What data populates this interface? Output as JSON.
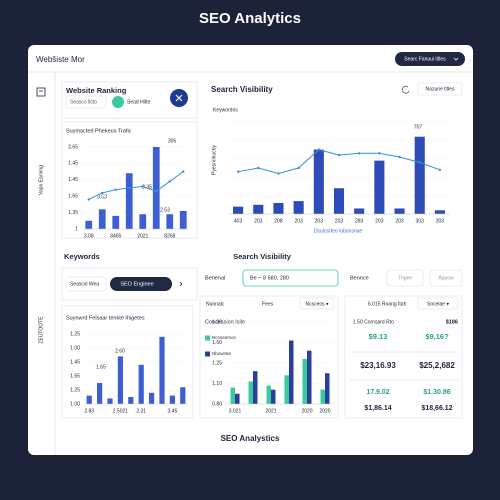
{
  "header": {
    "title": "SEO Analytics"
  },
  "app": {
    "site": "Webšiste Mor",
    "search_button": "Searc Fanuui titles",
    "sidebar": [
      "Vapo Earning",
      "ZEUTOOTE"
    ]
  },
  "ranking": {
    "title": "Website Ranking",
    "input": "Seasco llsto",
    "button": "Sead Hitte"
  },
  "visibility": {
    "title": "Search Visibility",
    "button": "Nazurie titles",
    "subtitle": "Keywordris",
    "axis_label": "Pyesnnhucby",
    "footnote": "Dsuiosrteo lobonsnae"
  },
  "keywords": {
    "title": "Keywords",
    "center_title": "Search Visibility",
    "input": "Seascvl Wea",
    "engine": "SEO Enginee",
    "label": "Benenal",
    "field": "Be ~ 8 680, 280",
    "select": "Bennce",
    "button_a": "Thgee",
    "button_b": "Appow"
  },
  "bottom_mid": {
    "tab_a": "Nunnalc",
    "tab_b": "Fees",
    "select": "Ncsceos ▾"
  },
  "table": {
    "title": "6.015 Rnang Itah",
    "select": "Sncelae ▾",
    "rows": [
      [
        "1.50 Cornsard Rto",
        "$186"
      ],
      [
        "$9.13",
        "$9,16?"
      ],
      [
        "$23,16.93",
        "$25,2,682"
      ],
      [
        "17.9.02",
        "$1.30.86"
      ],
      [
        "$1,86.14",
        "$18,66.12"
      ]
    ]
  },
  "footer": "SEO Analystics",
  "chart_data": [
    {
      "type": "bar_line",
      "title": "Suymacted Phekeus Trafic",
      "categories": [
        "3.08",
        null,
        "8465",
        null,
        "2021",
        null,
        "8268",
        null
      ],
      "ylim": [
        0,
        5
      ],
      "yticks": [
        {
          "value": 5,
          "label": "2.65"
        },
        {
          "value": 4,
          "label": "1.45"
        },
        {
          "value": 3,
          "label": "1.45"
        },
        {
          "value": 2,
          "label": "1.65"
        },
        {
          "value": 1,
          "label": "1.35"
        },
        {
          "value": 0,
          "label": "1"
        }
      ],
      "series": [
        {
          "kind": "bar",
          "color": "#3d5fd1",
          "values": [
            0.5,
            1.2,
            0.8,
            3.4,
            0.9,
            5,
            0.9,
            1.1
          ]
        },
        {
          "kind": "line",
          "color": "#3a8fd6",
          "values": [
            1.8,
            2.2,
            2.4,
            2.5,
            2.6,
            2.3,
            2.9,
            3.5
          ]
        }
      ],
      "annotations": [
        "305",
        "3.53",
        "3.35",
        "2.53"
      ]
    },
    {
      "type": "bar_line",
      "title": "",
      "categories": [
        "403",
        "203",
        "208",
        "203",
        "203",
        "203",
        "283",
        "203",
        "203",
        "303",
        "203"
      ],
      "ylim": [
        0,
        5
      ],
      "yticks": [
        0,
        1,
        2,
        3,
        4,
        5
      ],
      "series": [
        {
          "kind": "bar",
          "color": "#2f4bb8",
          "values": [
            0.4,
            0.5,
            0.6,
            0.7,
            3.5,
            1.4,
            0.3,
            2.9,
            0.3,
            4.2,
            0.2
          ]
        },
        {
          "kind": "line",
          "color": "#3a8fd6",
          "values": [
            2.3,
            2.5,
            2.2,
            2.5,
            3.5,
            3.2,
            3.3,
            3.3,
            3.1,
            2.8,
            2.4
          ]
        }
      ],
      "annotations": [
        "707"
      ]
    },
    {
      "type": "bar_line",
      "title": "Suynwrd Felsaar tenkte Ihigetes",
      "categories": [
        "2.83",
        null,
        null,
        "2.5021",
        null,
        "2.31",
        null,
        null,
        "3.45",
        null
      ],
      "ylim": [
        0,
        5
      ],
      "yticks": [
        {
          "value": 5,
          "label": "1.25"
        },
        {
          "value": 4,
          "label": "1.00"
        },
        {
          "value": 3,
          "label": "1.45"
        },
        {
          "value": 2,
          "label": "1.65"
        },
        {
          "value": 1,
          "label": "1.25"
        },
        {
          "value": 0,
          "label": "1.00"
        }
      ],
      "series": [
        {
          "kind": "bar",
          "color": "#3d5fd1",
          "values": [
            0.6,
            1.5,
            0.4,
            3.4,
            0.5,
            2.8,
            0.8,
            4.8,
            0.6,
            1.2
          ]
        }
      ],
      "annotations": [
        "2.60",
        "1.65"
      ]
    },
    {
      "type": "bar_line",
      "title": "Concession Isile",
      "categories": [
        "3.021",
        null,
        "2021",
        null,
        "2020",
        "2020"
      ],
      "ylim": [
        0,
        4
      ],
      "yticks": [
        {
          "value": 4,
          "label": "1.80"
        },
        {
          "value": 3,
          "label": "1.60"
        },
        {
          "value": 2,
          "label": "1.25"
        },
        {
          "value": 1,
          "label": "1.10"
        },
        {
          "value": 0,
          "label": "0.80"
        }
      ],
      "series": [
        {
          "kind": "bar",
          "name": "Ncnsenmos",
          "color": "#3cc9a0",
          "values": [
            0.8,
            1.1,
            0.9,
            1.4,
            2.2,
            0.7
          ]
        },
        {
          "kind": "bar",
          "name": "Nbowrste",
          "color": "#2b3f9a",
          "values": [
            0.5,
            1.6,
            0.7,
            3.1,
            2.6,
            1.5
          ]
        }
      ]
    }
  ]
}
